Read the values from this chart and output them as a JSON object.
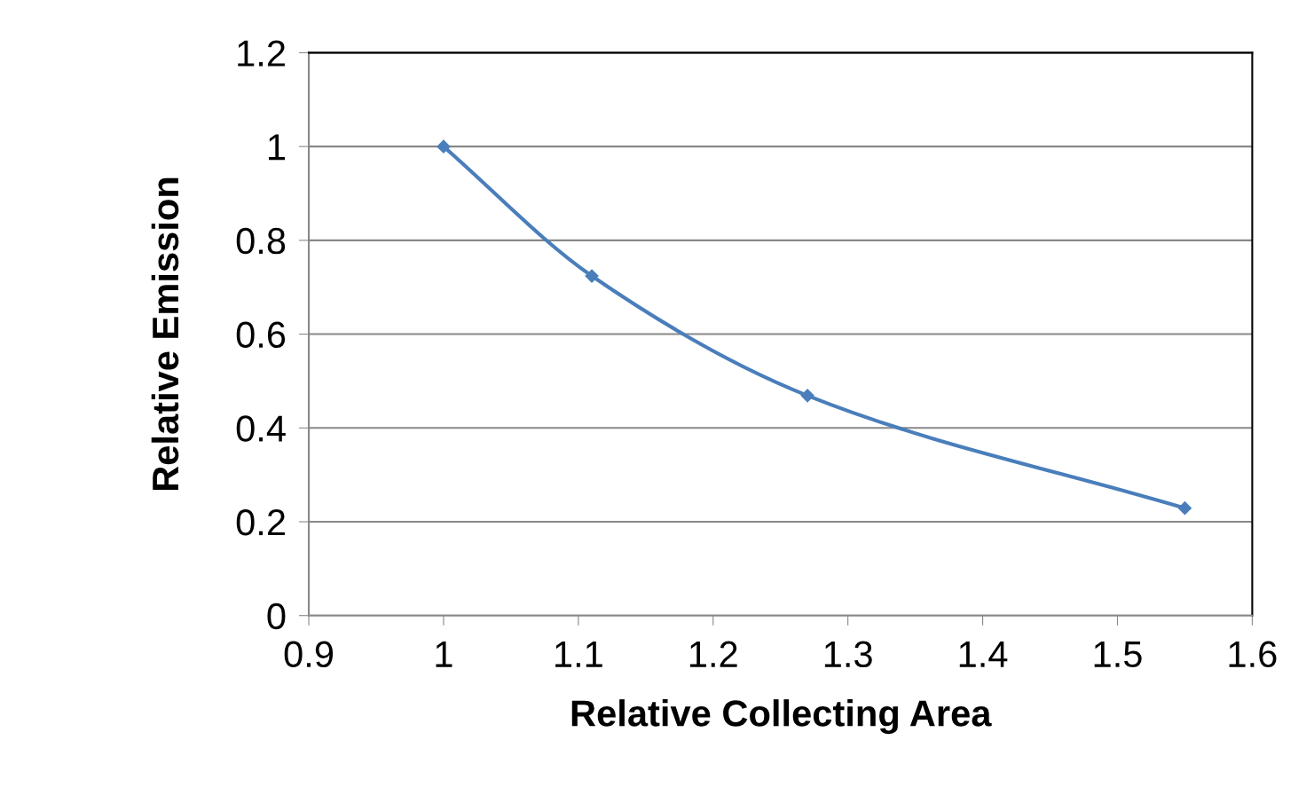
{
  "chart_data": {
    "type": "line",
    "xlabel": "Relative Collecting Area",
    "ylabel": "Relative Emission",
    "x": [
      1.0,
      1.11,
      1.27,
      1.55
    ],
    "series": [
      {
        "color": "#4a7ebb",
        "values": [
          1.0,
          0.724,
          0.469,
          0.229
        ]
      }
    ],
    "xlim": [
      0.9,
      1.6
    ],
    "xticks": [
      0.9,
      1,
      1.1,
      1.2,
      1.3,
      1.4,
      1.5,
      1.6
    ],
    "ylim": [
      0,
      1.2
    ],
    "yticks": [
      0,
      0.2,
      0.4,
      0.6,
      0.8,
      1,
      1.2
    ],
    "grid": "y",
    "marker": "diamond",
    "line_style": "solid",
    "legend": false
  }
}
